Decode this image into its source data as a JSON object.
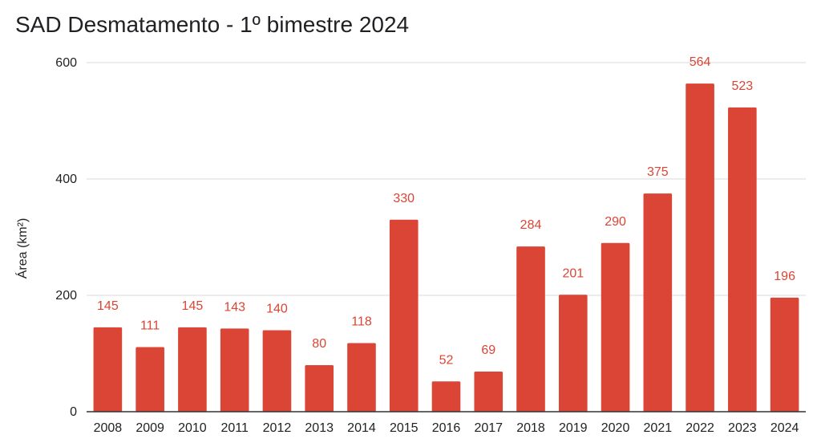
{
  "chart_data": {
    "type": "bar",
    "title": "SAD Desmatamento - 1º bimestre 2024",
    "xlabel": "",
    "ylabel": "Área (km²)",
    "ylim": [
      0,
      600
    ],
    "yticks": [
      0,
      200,
      400,
      600
    ],
    "grid": true,
    "legend": "none",
    "bar_color": "#db4535",
    "label_color": "#db4535",
    "categories": [
      "2008",
      "2009",
      "2010",
      "2011",
      "2012",
      "2013",
      "2014",
      "2015",
      "2016",
      "2017",
      "2018",
      "2019",
      "2020",
      "2021",
      "2022",
      "2023",
      "2024"
    ],
    "values": [
      145,
      111,
      145,
      143,
      140,
      80,
      118,
      330,
      52,
      69,
      284,
      201,
      290,
      375,
      564,
      523,
      196
    ]
  }
}
